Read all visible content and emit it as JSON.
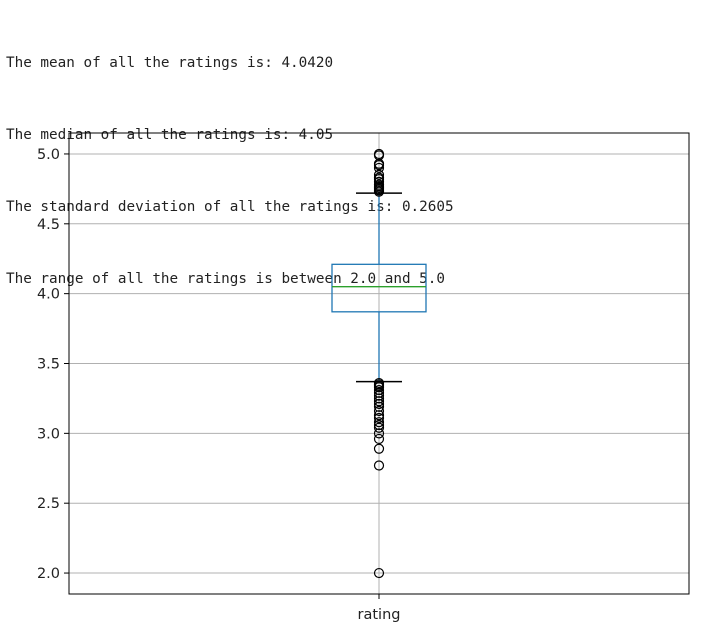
{
  "output_lines": [
    "The mean of all the ratings is: 4.0420",
    "The median of all the ratings is: 4.05",
    "The standard deviation of all the ratings is: 0.2605",
    "The range of all the ratings is between 2.0 and 5.0"
  ],
  "chart_data": {
    "type": "boxplot",
    "categories": [
      "rating"
    ],
    "ylim": [
      1.85,
      5.15
    ],
    "yticks": [
      2.0,
      2.5,
      3.0,
      3.5,
      4.0,
      4.5,
      5.0
    ],
    "ytick_labels": [
      "2.0",
      "2.5",
      "3.0",
      "3.5",
      "4.0",
      "4.5",
      "5.0"
    ],
    "grid": true,
    "boxes": [
      {
        "label": "rating",
        "q1": 3.87,
        "median": 4.05,
        "q3": 4.21,
        "whisker_low": 3.37,
        "whisker_high": 4.72,
        "outliers": [
          2.0,
          2.77,
          2.89,
          2.96,
          3.0,
          3.04,
          3.06,
          3.08,
          3.11,
          3.13,
          3.16,
          3.19,
          3.21,
          3.23,
          3.25,
          3.27,
          3.29,
          3.31,
          3.33,
          3.34,
          3.35,
          3.36,
          4.73,
          4.74,
          4.75,
          4.76,
          4.77,
          4.78,
          4.8,
          4.82,
          4.83,
          4.85,
          4.9,
          4.92,
          4.93,
          4.99,
          5.0
        ]
      }
    ],
    "colors": {
      "box": "#1f77b4",
      "median": "#2ca02c",
      "whisker_cap": "#000000",
      "flier": "#000000",
      "grid": "#b0b0b0"
    }
  }
}
